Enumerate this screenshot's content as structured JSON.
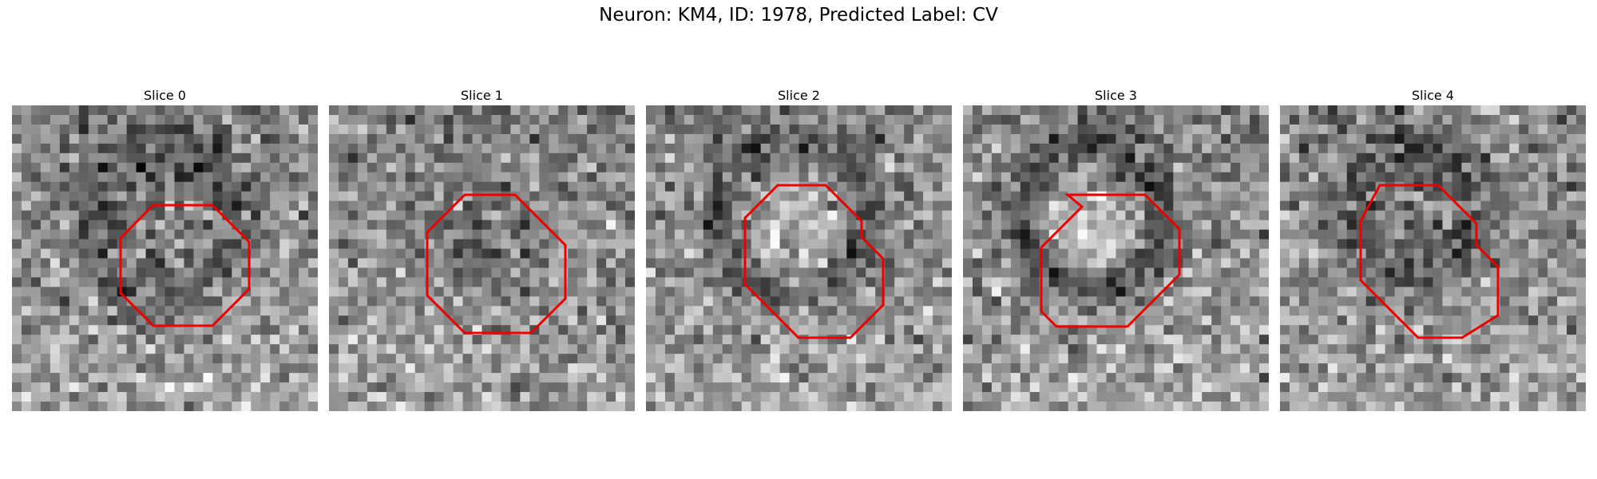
{
  "figure": {
    "title": "Neuron: KM4, ID: 1978, Predicted Label: CV"
  },
  "colors": {
    "roi_outline": "#ee0000",
    "colormap": "gray"
  },
  "panels": [
    {
      "title": "Slice 0",
      "blob": "dark-ring"
    },
    {
      "title": "Slice 1",
      "blob": "dark-center"
    },
    {
      "title": "Slice 2",
      "blob": "bright-center"
    },
    {
      "title": "Slice 3",
      "blob": "bright-center-dark-ring"
    },
    {
      "title": "Slice 4",
      "blob": "dark-center-ring"
    }
  ]
}
